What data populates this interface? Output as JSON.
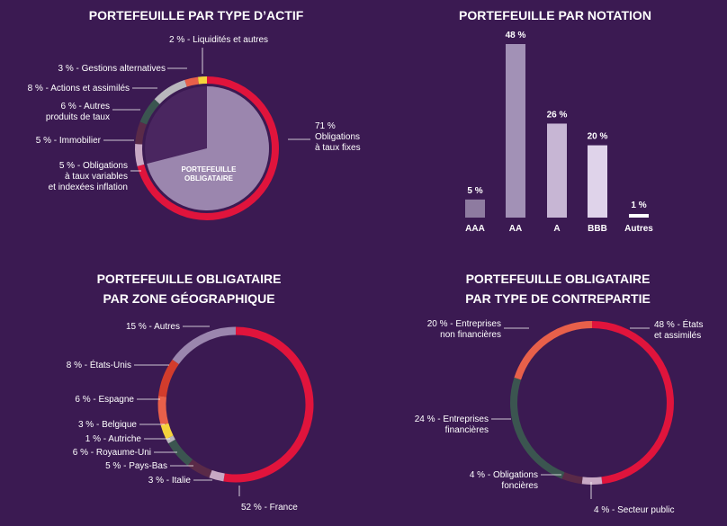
{
  "colors": {
    "background": "#3b1a52",
    "red": "#e0143c",
    "lavender": "#9b86ae",
    "orange": "#e8604a",
    "yellow": "#f5d33c",
    "darkgreen": "#3b5550",
    "gray": "#b9b7bd",
    "maroon": "#5a2a48",
    "lightpink": "#c8a8c4",
    "brick": "#d23c2c",
    "white": "#ffffff"
  },
  "chart_data": [
    {
      "type": "pie",
      "title": "PORTEFEUILLE PAR TYPE D’ACTIF",
      "inner_label": [
        "PORTEFEUILLE",
        "OBLIGATAIRE"
      ],
      "slices": [
        {
          "label": [
            "71 %",
            "Obligations",
            "à taux fixes"
          ],
          "value": 71,
          "color": "#e0143c"
        },
        {
          "label": [
            "5 % - Obligations",
            "à taux variables",
            "et indexées inflation"
          ],
          "value": 5,
          "color": "#c8a8c4"
        },
        {
          "label": [
            "5 % - Immobilier"
          ],
          "value": 5,
          "color": "#5a2a48"
        },
        {
          "label": [
            "6 % - Autres",
            "produits de taux"
          ],
          "value": 6,
          "color": "#3b5550"
        },
        {
          "label": [
            "8 % - Actions et assimilés"
          ],
          "value": 8,
          "color": "#b9b7bd"
        },
        {
          "label": [
            "3 % - Gestions alternatives"
          ],
          "value": 3,
          "color": "#e8604a"
        },
        {
          "label": [
            "2 % - Liquidités et autres"
          ],
          "value": 2,
          "color": "#f5d33c"
        }
      ]
    },
    {
      "type": "bar",
      "title": "PORTEFEUILLE PAR NOTATION",
      "categories": [
        "AAA",
        "AA",
        "A",
        "BBB",
        "Autres"
      ],
      "values": [
        5,
        48,
        26,
        20,
        1
      ],
      "value_labels": [
        "5 %",
        "48 %",
        "26 %",
        "20 %",
        "1 %"
      ],
      "colors": [
        "#8e7ba0",
        "#a291b6",
        "#c7b6d4",
        "#dfd3ea",
        "#ffffff"
      ],
      "ylim": [
        0,
        48
      ]
    },
    {
      "type": "pie",
      "title": [
        "PORTEFEUILLE OBLIGATAIRE",
        "PAR ZONE GÉOGRAPHIQUE"
      ],
      "slices": [
        {
          "label": [
            "52 % - France"
          ],
          "value": 52,
          "color": "#e0143c"
        },
        {
          "label": [
            "3 % - Italie"
          ],
          "value": 3,
          "color": "#c8a8c4"
        },
        {
          "label": [
            "5 % - Pays-Bas"
          ],
          "value": 5,
          "color": "#5a2a48"
        },
        {
          "label": [
            "6 % - Royaume-Uni"
          ],
          "value": 6,
          "color": "#3b5550"
        },
        {
          "label": [
            "1 % - Autriche"
          ],
          "value": 1,
          "color": "#b9b7bd"
        },
        {
          "label": [
            "3 % - Belgique"
          ],
          "value": 3,
          "color": "#f5d33c"
        },
        {
          "label": [
            "6 % - Espagne"
          ],
          "value": 6,
          "color": "#e8604a"
        },
        {
          "label": [
            "8 % - États-Unis"
          ],
          "value": 8,
          "color": "#d23c2c"
        },
        {
          "label": [
            "15 % - Autres"
          ],
          "value": 15,
          "color": "#9b86ae"
        }
      ]
    },
    {
      "type": "pie",
      "title": [
        "PORTEFEUILLE OBLIGATAIRE",
        "PAR TYPE DE CONTREPARTIE"
      ],
      "slices": [
        {
          "label": [
            "48 % - États",
            "et assimilés"
          ],
          "value": 48,
          "color": "#e0143c"
        },
        {
          "label": [
            "4 % - Secteur public"
          ],
          "value": 4,
          "color": "#c8a8c4"
        },
        {
          "label": [
            "4 % - Obligations",
            "foncières"
          ],
          "value": 4,
          "color": "#5a2a48"
        },
        {
          "label": [
            "24 % - Entreprises",
            "financières"
          ],
          "value": 24,
          "color": "#3b5550"
        },
        {
          "label": [
            "20 % - Entreprises",
            "non financières"
          ],
          "value": 20,
          "color": "#e8604a"
        }
      ]
    }
  ]
}
